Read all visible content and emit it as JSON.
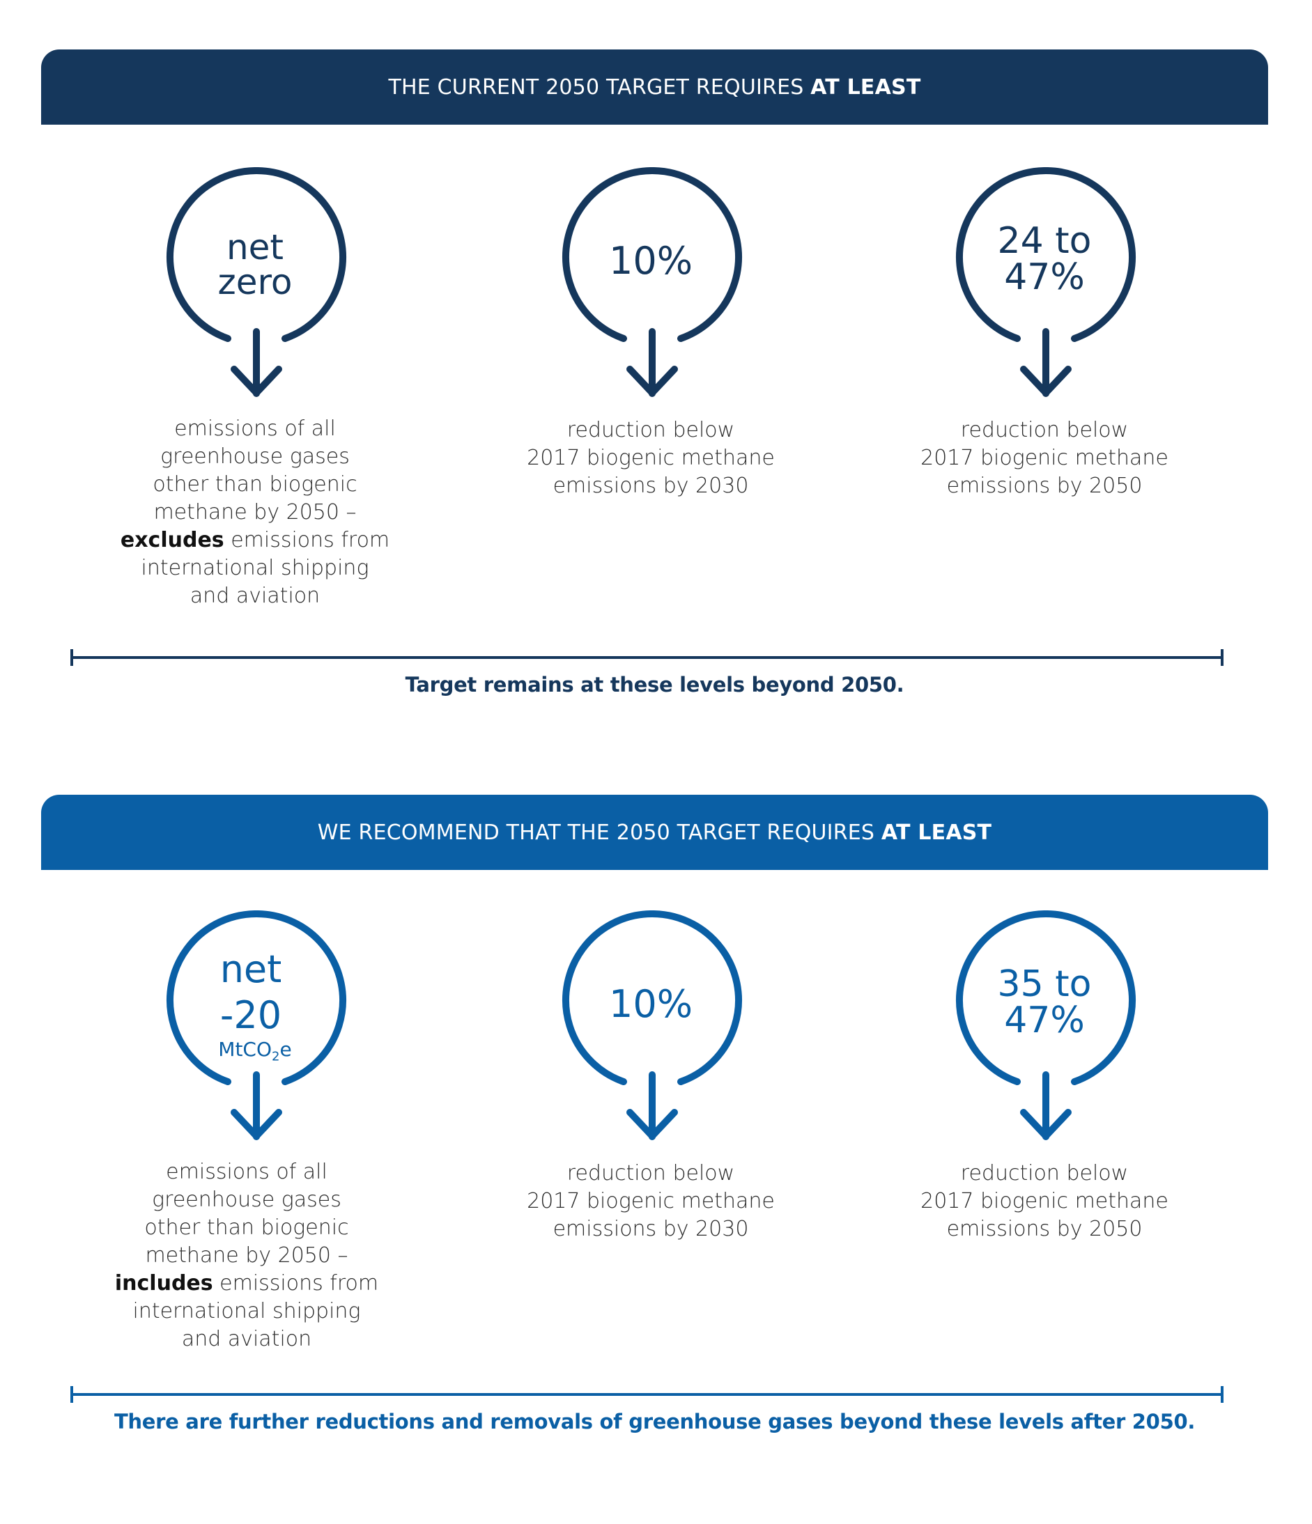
{
  "colors": {
    "dark_navy": "#15375c",
    "bright_blue": "#0a5fa5",
    "text": "#2b2b2b"
  },
  "section_current": {
    "banner": {
      "text": "THE CURRENT 2050 TARGET REQUIRES ",
      "bold": "AT LEAST"
    },
    "items": [
      {
        "value_lines": [
          "net",
          "zero"
        ],
        "desc_lines": [
          "emissions of all",
          "greenhouse gases",
          "other than biogenic",
          "methane by 2050 –"
        ],
        "desc_bold": "excludes",
        "desc_after_bold": " emissions from",
        "desc_tail": [
          "international shipping",
          "and aviation"
        ]
      },
      {
        "value_lines": [
          "10%"
        ],
        "desc_lines": [
          "reduction below",
          "2017 biogenic methane",
          "emissions by 2030"
        ]
      },
      {
        "value_lines": [
          "24 to",
          "47%"
        ],
        "desc_lines": [
          "reduction below",
          "2017 biogenic methane",
          "emissions by 2050"
        ]
      }
    ],
    "note": "Target remains at these levels beyond 2050."
  },
  "section_recommend": {
    "banner": {
      "text": "WE RECOMMEND THAT THE 2050 TARGET REQUIRES ",
      "bold": "AT LEAST"
    },
    "items": [
      {
        "value_lines": [
          "net",
          "-20"
        ],
        "unit_main": "MtCO",
        "unit_sub": "2",
        "unit_tail": "e",
        "desc_lines": [
          "emissions of all",
          "greenhouse gases",
          "other than biogenic",
          "methane by 2050 –"
        ],
        "desc_bold": "includes",
        "desc_after_bold": " emissions from",
        "desc_tail": [
          "international shipping",
          "and aviation"
        ]
      },
      {
        "value_lines": [
          "10%"
        ],
        "desc_lines": [
          "reduction below",
          "2017 biogenic methane",
          "emissions by 2030"
        ]
      },
      {
        "value_lines": [
          "35 to",
          "47%"
        ],
        "desc_lines": [
          "reduction below",
          "2017 biogenic methane",
          "emissions by 2050"
        ]
      }
    ],
    "note": "There are further reductions and removals of greenhouse gases beyond these levels after 2050."
  }
}
